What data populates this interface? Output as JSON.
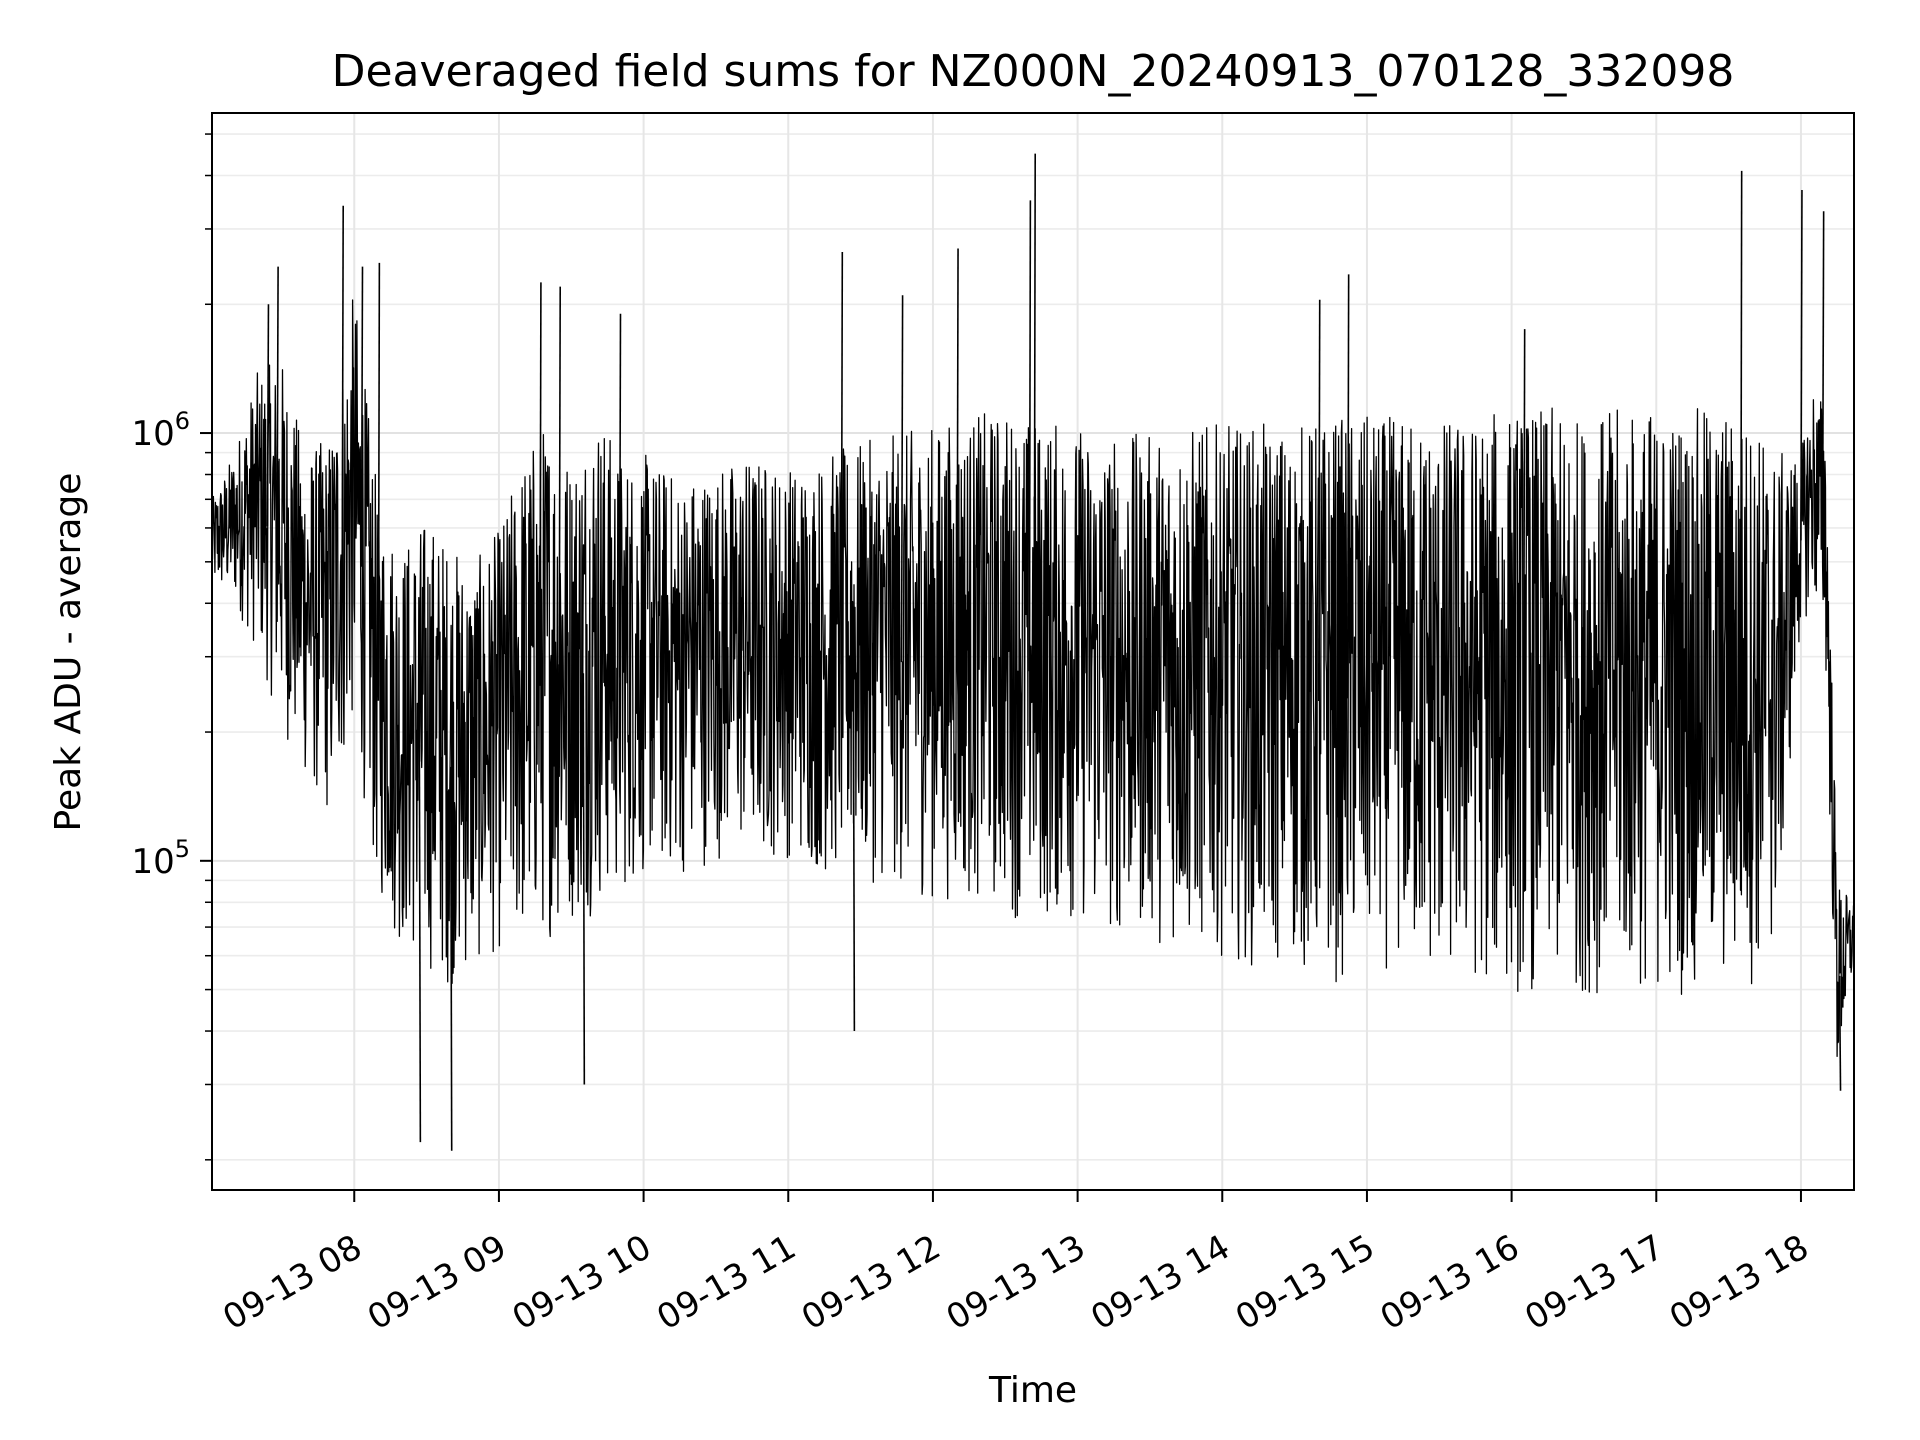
{
  "chart_data": {
    "type": "line",
    "title": "Deaveraged field sums for NZ000N_20240913_070128_332098",
    "xlabel": "Time",
    "ylabel": "Peak ADU - average",
    "yscale": "log",
    "grid": true,
    "color": "#000000",
    "xlim": [
      "2024-09-13 07:01",
      "2024-09-13 18:22"
    ],
    "ylim": [
      17000,
      5600000
    ],
    "x_ticks": [
      "09-13 08",
      "09-13 09",
      "09-13 10",
      "09-13 11",
      "09-13 12",
      "09-13 13",
      "09-13 14",
      "09-13 15",
      "09-13 16",
      "09-13 17",
      "09-13 18"
    ],
    "y_tick_values": [
      100000,
      1000000
    ],
    "y_ticks": [
      {
        "base": "10",
        "exp": "5"
      },
      {
        "base": "10",
        "exp": "6"
      }
    ],
    "series": [
      {
        "x": [
          "2024-09-13 07:01",
          "2024-09-13 07:10",
          "2024-09-13 07:20",
          "2024-09-13 07:30",
          "2024-09-13 07:40",
          "2024-09-13 07:50",
          "2024-09-13 08:00",
          "2024-09-13 08:10",
          "2024-09-13 08:20",
          "2024-09-13 08:30",
          "2024-09-13 08:40",
          "2024-09-13 08:50",
          "2024-09-13 09:00",
          "2024-09-13 09:10",
          "2024-09-13 09:20",
          "2024-09-13 09:30",
          "2024-09-13 09:40",
          "2024-09-13 09:50",
          "2024-09-13 10:00",
          "2024-09-13 10:15",
          "2024-09-13 10:30",
          "2024-09-13 10:45",
          "2024-09-13 11:00",
          "2024-09-13 11:15",
          "2024-09-13 11:30",
          "2024-09-13 11:45",
          "2024-09-13 12:00",
          "2024-09-13 12:15",
          "2024-09-13 12:30",
          "2024-09-13 12:40",
          "2024-09-13 13:00",
          "2024-09-13 13:15",
          "2024-09-13 13:30",
          "2024-09-13 13:45",
          "2024-09-13 14:00",
          "2024-09-13 14:15",
          "2024-09-13 14:30",
          "2024-09-13 14:45",
          "2024-09-13 15:00",
          "2024-09-13 15:15",
          "2024-09-13 15:30",
          "2024-09-13 15:45",
          "2024-09-13 16:00",
          "2024-09-13 16:15",
          "2024-09-13 16:30",
          "2024-09-13 16:45",
          "2024-09-13 17:00",
          "2024-09-13 17:15",
          "2024-09-13 17:30",
          "2024-09-13 17:40",
          "2024-09-13 17:50",
          "2024-09-13 18:00",
          "2024-09-13 18:05",
          "2024-09-13 18:10",
          "2024-09-13 18:15",
          "2024-09-13 18:22"
        ],
        "lower": [
          420000,
          400000,
          300000,
          200000,
          150000,
          120000,
          200000,
          80000,
          60000,
          55000,
          50000,
          55000,
          60000,
          60000,
          65000,
          70000,
          75000,
          80000,
          90000,
          90000,
          100000,
          100000,
          100000,
          90000,
          90000,
          85000,
          80000,
          80000,
          75000,
          70000,
          70000,
          65000,
          65000,
          60000,
          60000,
          55000,
          55000,
          50000,
          55000,
          55000,
          50000,
          50000,
          48000,
          48000,
          48000,
          48000,
          48000,
          48000,
          48000,
          50000,
          60000,
          350000,
          400000,
          300000,
          30000,
          55000
        ],
        "upper": [
          700000,
          900000,
          1400000,
          1500000,
          900000,
          1000000,
          2200000,
          700000,
          550000,
          650000,
          550000,
          500000,
          600000,
          900000,
          1100000,
          900000,
          1200000,
          900000,
          900000,
          800000,
          850000,
          900000,
          850000,
          900000,
          950000,
          1000000,
          1050000,
          1100000,
          1150000,
          1100000,
          1050000,
          1000000,
          1000000,
          1050000,
          1050000,
          1050000,
          1050000,
          1100000,
          1100000,
          1100000,
          1100000,
          1100000,
          1150000,
          1150000,
          1100000,
          1150000,
          1150000,
          1150000,
          1150000,
          1100000,
          900000,
          900000,
          1300000,
          1200000,
          90000,
          80000
        ]
      }
    ],
    "spikes": [
      {
        "x": "2024-09-13 07:24",
        "y": 2000000
      },
      {
        "x": "2024-09-13 07:28",
        "y": 2450000
      },
      {
        "x": "2024-09-13 07:55",
        "y": 3400000
      },
      {
        "x": "2024-09-13 08:03",
        "y": 2450000
      },
      {
        "x": "2024-09-13 08:10",
        "y": 2500000
      },
      {
        "x": "2024-09-13 08:27",
        "y": 22000
      },
      {
        "x": "2024-09-13 08:40",
        "y": 21000
      },
      {
        "x": "2024-09-13 09:17",
        "y": 2250000
      },
      {
        "x": "2024-09-13 09:25",
        "y": 2200000
      },
      {
        "x": "2024-09-13 09:35",
        "y": 30000
      },
      {
        "x": "2024-09-13 09:50",
        "y": 1900000
      },
      {
        "x": "2024-09-13 11:22",
        "y": 2650000
      },
      {
        "x": "2024-09-13 11:27",
        "y": 40000
      },
      {
        "x": "2024-09-13 11:47",
        "y": 2100000
      },
      {
        "x": "2024-09-13 12:10",
        "y": 2700000
      },
      {
        "x": "2024-09-13 12:40",
        "y": 3500000
      },
      {
        "x": "2024-09-13 12:42",
        "y": 4500000
      },
      {
        "x": "2024-09-13 14:40",
        "y": 2050000
      },
      {
        "x": "2024-09-13 14:52",
        "y": 2350000
      },
      {
        "x": "2024-09-13 16:05",
        "y": 1750000
      },
      {
        "x": "2024-09-13 17:35",
        "y": 4100000
      },
      {
        "x": "2024-09-13 18:00",
        "y": 3700000
      },
      {
        "x": "2024-09-13 18:09",
        "y": 3300000
      },
      {
        "x": "2024-09-13 18:16",
        "y": 29000
      }
    ]
  }
}
